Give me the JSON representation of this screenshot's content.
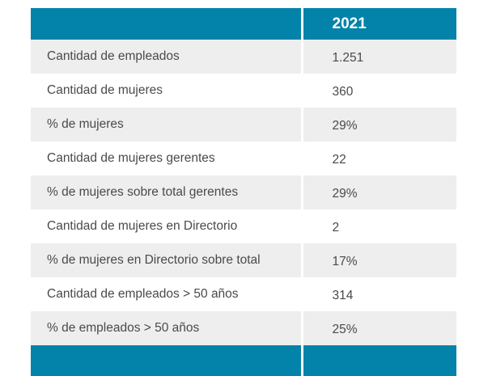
{
  "table": {
    "header": {
      "label": "",
      "year": "2021"
    },
    "rows": [
      {
        "label": "Cantidad de empleados",
        "value": "1.251"
      },
      {
        "label": "Cantidad de mujeres",
        "value": "360"
      },
      {
        "label": "% de mujeres",
        "value": "29%"
      },
      {
        "label": "Cantidad de mujeres gerentes",
        "value": "22"
      },
      {
        "label": "% de mujeres sobre total gerentes",
        "value": "29%"
      },
      {
        "label": "Cantidad de mujeres en Directorio",
        "value": "2"
      },
      {
        "label": "% de mujeres en Directorio sobre total",
        "value": "17%"
      },
      {
        "label": "Cantidad de empleados >  50 años",
        "value": "314"
      },
      {
        "label": "% de empleados > 50 años",
        "value": "25%"
      }
    ],
    "colors": {
      "header_bg": "#0383a9",
      "stripe_bg": "#eeeeee",
      "text": "#4a4a4a"
    }
  }
}
